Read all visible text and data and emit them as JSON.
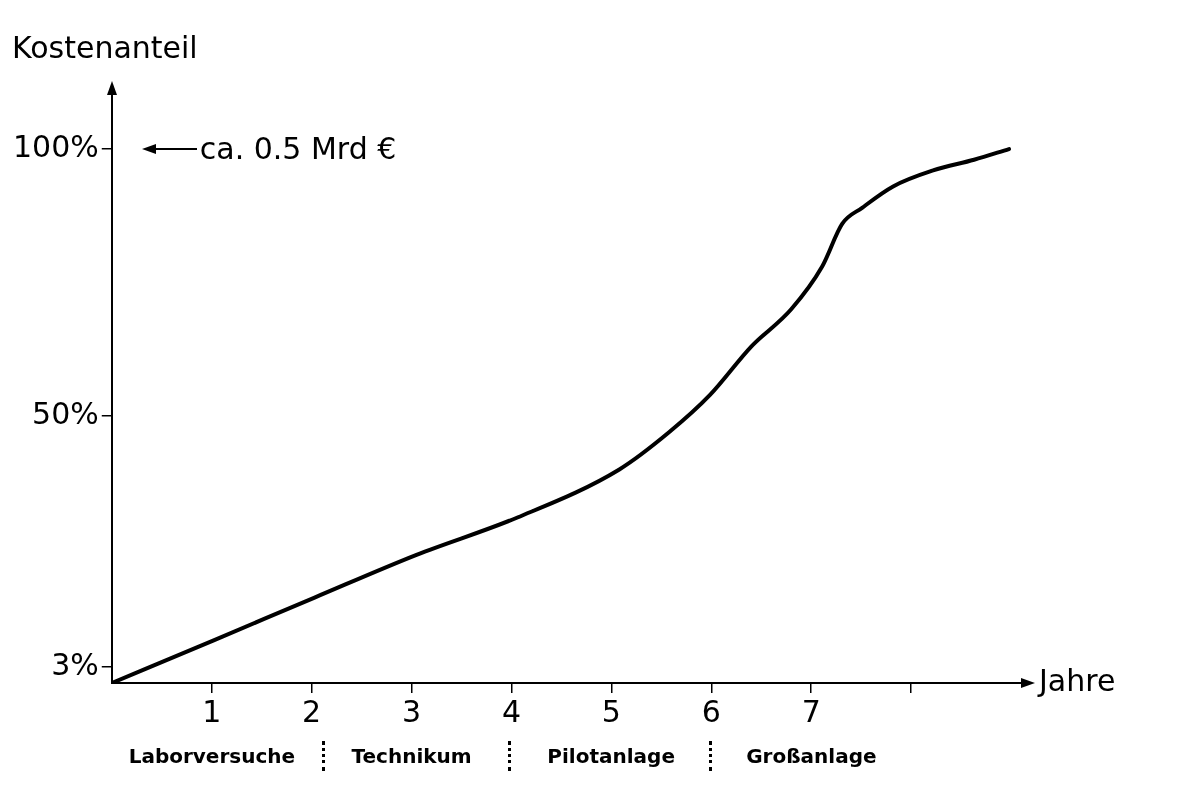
{
  "chart_data": {
    "type": "line",
    "ylabel": "Kostenanteil",
    "xlabel": "Jahre",
    "x": [
      0,
      1.02,
      2.03,
      3.05,
      4.06,
      5.08,
      5.58,
      5.99,
      6.4,
      6.8,
      7.11,
      7.31,
      7.51,
      7.82,
      8.22,
      8.63,
      8.98
    ],
    "series": [
      {
        "color": "#000000",
        "values": [
          0,
          8,
          16,
          24,
          31,
          40,
          47,
          54,
          63,
          70,
          78,
          86,
          89,
          93,
          96,
          98,
          100
        ]
      }
    ],
    "xlim": [
      0,
      9.2
    ],
    "ylim": [
      0,
      112
    ],
    "xticks": [
      1,
      2,
      3,
      4,
      5,
      6,
      7,
      {
        "value": 8,
        "label": null
      }
    ],
    "yticks": [
      {
        "value": 3,
        "label": "3%"
      },
      {
        "value": 50,
        "label": "50%"
      },
      {
        "value": 100,
        "label": "100%"
      }
    ],
    "annotations": [
      "ca. 0.5 Mrd €",
      "Laborversuche",
      "Technikum",
      "Pilotanlage",
      "Großanlage"
    ],
    "legend": false,
    "marker": "none",
    "line_style": "solid"
  }
}
